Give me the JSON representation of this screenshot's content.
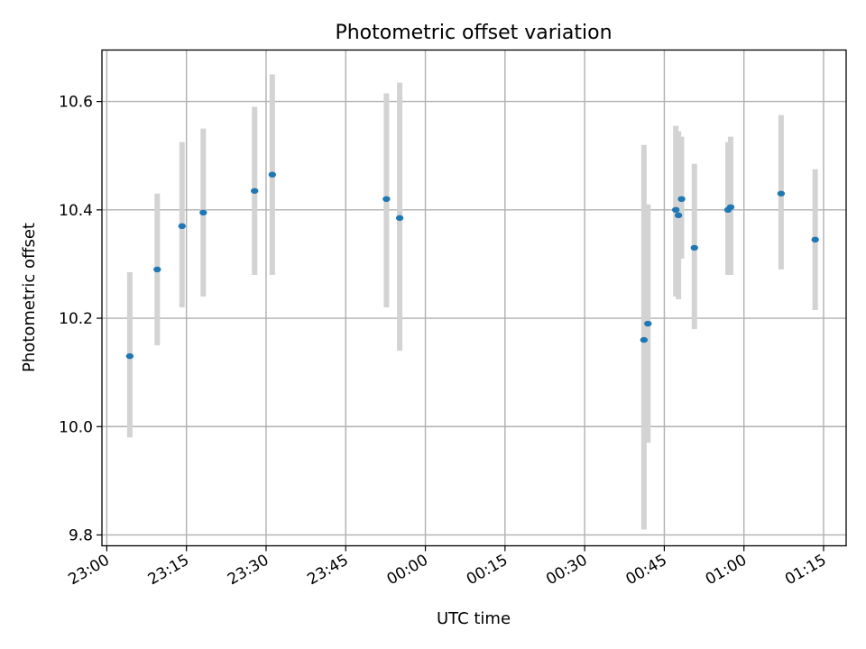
{
  "chart_data": {
    "type": "scatter",
    "title": "Photometric offset variation",
    "xlabel": "UTC time",
    "ylabel": "Photometric offset",
    "x_tick_labels": [
      "23:00",
      "23:15",
      "23:30",
      "23:45",
      "00:00",
      "00:15",
      "00:30",
      "00:45",
      "01:00",
      "01:15"
    ],
    "y_tick_labels": [
      "9.8",
      "10.0",
      "10.2",
      "10.4",
      "10.6"
    ],
    "y_ticks": [
      9.8,
      10.0,
      10.2,
      10.4,
      10.6
    ],
    "ylim": [
      9.78,
      10.695
    ],
    "xlim": [
      "22:59:05",
      "01:19:15"
    ],
    "grid": true,
    "errorbar_color": "#d3d3d3",
    "point_color": "#1f77b4",
    "points": [
      {
        "time": "23:04:20",
        "y": 10.13,
        "lower": 9.98,
        "upper": 10.285
      },
      {
        "time": "23:09:30",
        "y": 10.29,
        "lower": 10.15,
        "upper": 10.43
      },
      {
        "time": "23:14:10",
        "y": 10.37,
        "lower": 10.22,
        "upper": 10.525
      },
      {
        "time": "23:18:10",
        "y": 10.395,
        "lower": 10.24,
        "upper": 10.55
      },
      {
        "time": "23:27:50",
        "y": 10.435,
        "lower": 10.28,
        "upper": 10.59
      },
      {
        "time": "23:31:10",
        "y": 10.465,
        "lower": 10.28,
        "upper": 10.65
      },
      {
        "time": "23:52:40",
        "y": 10.42,
        "lower": 10.22,
        "upper": 10.615
      },
      {
        "time": "23:55:10",
        "y": 10.385,
        "lower": 10.14,
        "upper": 10.635
      },
      {
        "time": "00:41:10",
        "y": 10.16,
        "lower": 9.81,
        "upper": 10.52
      },
      {
        "time": "00:41:55",
        "y": 10.19,
        "lower": 9.97,
        "upper": 10.41
      },
      {
        "time": "00:47:10",
        "y": 10.4,
        "lower": 10.24,
        "upper": 10.555
      },
      {
        "time": "00:47:40",
        "y": 10.39,
        "lower": 10.235,
        "upper": 10.545
      },
      {
        "time": "00:48:15",
        "y": 10.42,
        "lower": 10.31,
        "upper": 10.535
      },
      {
        "time": "00:50:40",
        "y": 10.33,
        "lower": 10.18,
        "upper": 10.485
      },
      {
        "time": "00:57:00",
        "y": 10.4,
        "lower": 10.28,
        "upper": 10.525
      },
      {
        "time": "00:57:30",
        "y": 10.405,
        "lower": 10.28,
        "upper": 10.535
      },
      {
        "time": "01:07:00",
        "y": 10.43,
        "lower": 10.29,
        "upper": 10.575
      },
      {
        "time": "01:13:25",
        "y": 10.345,
        "lower": 10.215,
        "upper": 10.475
      }
    ]
  }
}
